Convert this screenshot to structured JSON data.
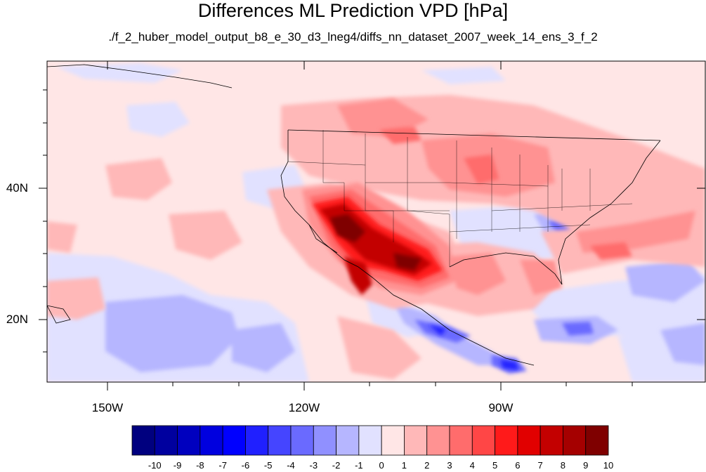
{
  "map": {
    "title": "Differences ML Prediction VPD [hPa]",
    "subtitle": "./f_2_huber_model_output_b8_e_30_d3_lneg4/diffs_nn_dataset_2007_week_14_ens_3_f_2",
    "lat_ticks": [
      "40N",
      "20N"
    ],
    "lon_ticks": [
      "150W",
      "120W",
      "90W"
    ],
    "extent": {
      "lon_min": -159,
      "lon_max": -61,
      "lat_min": 11,
      "lat_max": 60
    }
  },
  "colorbar": {
    "labels": [
      "-10",
      "-9",
      "-8",
      "-7",
      "-6",
      "-5",
      "-4",
      "-3",
      "-2",
      "-1",
      "0",
      "1",
      "2",
      "3",
      "4",
      "5",
      "6",
      "7",
      "8",
      "9",
      "10"
    ],
    "colors": [
      "#00007f",
      "#00009f",
      "#0000bf",
      "#0000df",
      "#0000ff",
      "#2020ff",
      "#4545ff",
      "#6a6aff",
      "#9090ff",
      "#b6b6ff",
      "#e1e1ff",
      "#ffe6e6",
      "#ffb8b8",
      "#ff9292",
      "#ff6c6c",
      "#ff4646",
      "#ff1a1a",
      "#e10000",
      "#c30000",
      "#a50000",
      "#7f0000"
    ]
  }
}
